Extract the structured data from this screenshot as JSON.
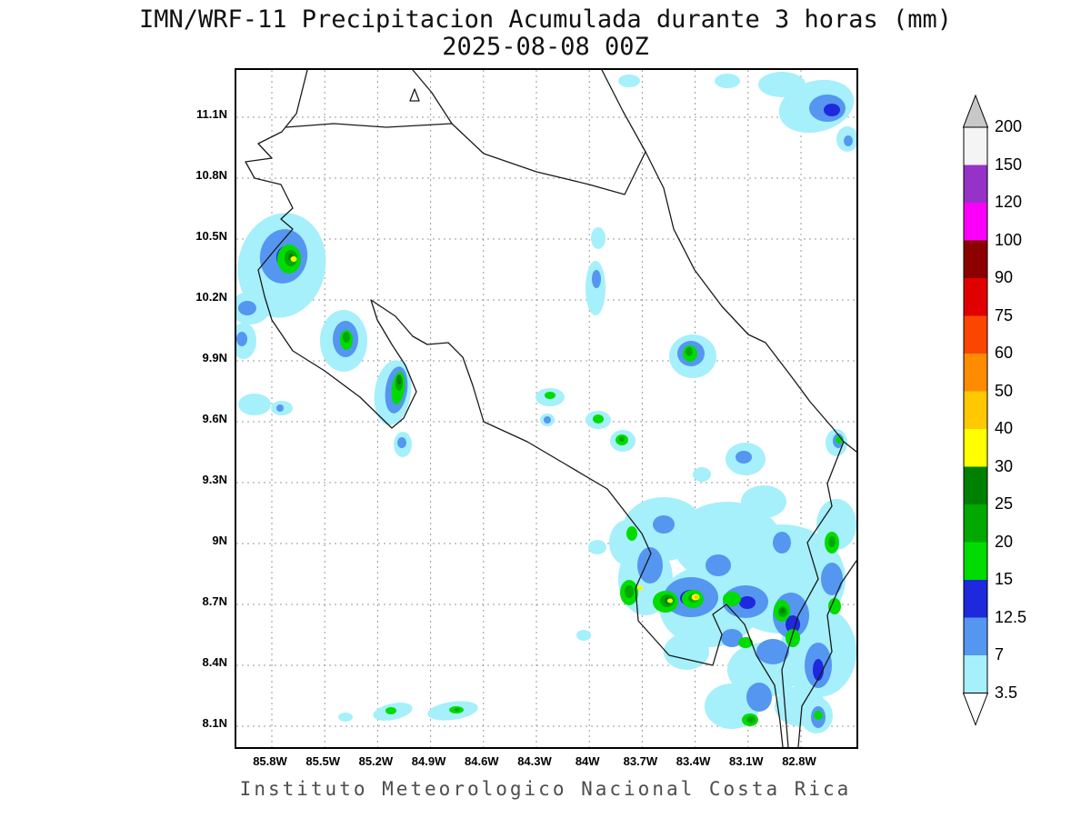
{
  "title": {
    "line1": "IMN/WRF-11 Precipitacion Acumulada durante 3 horas (mm)",
    "line2": "2025-08-08 00Z"
  },
  "caption": "Instituto Meteorologico Nacional Costa Rica",
  "map": {
    "lat_ticks": [
      "11.1N",
      "10.8N",
      "10.5N",
      "10.2N",
      "9.9N",
      "9.6N",
      "9.3N",
      "9N",
      "8.7N",
      "8.4N",
      "8.1N"
    ],
    "lon_ticks": [
      "85.8W",
      "85.5W",
      "85.2W",
      "84.9W",
      "84.6W",
      "84.3W",
      "84W",
      "83.7W",
      "83.4W",
      "83.1W",
      "82.8W"
    ],
    "region": "Costa Rica"
  },
  "colorbar": {
    "labels": [
      "200",
      "150",
      "120",
      "100",
      "90",
      "75",
      "60",
      "50",
      "40",
      "30",
      "25",
      "20",
      "15",
      "12.5",
      "7",
      "3.5"
    ],
    "colors": [
      "#f4f4f4",
      "#9632c8",
      "#fa00fa",
      "#8c0000",
      "#e10000",
      "#fa4600",
      "#ff8c00",
      "#ffc800",
      "#ffff00",
      "#008000",
      "#00a800",
      "#00dc00",
      "#1e28dc",
      "#5596f0",
      "#a5f0fa"
    ],
    "over_color": "#c8c8c8",
    "under_color": "#ffffff",
    "precip_palette": {
      "lv1": "#a5f0fa",
      "lv2": "#5596f0",
      "lv3": "#1e28dc",
      "lv4": "#00dc00",
      "lv5": "#00a800",
      "lv6": "#008000",
      "lv7": "#ffff00",
      "lv8": "#ffc800"
    }
  }
}
